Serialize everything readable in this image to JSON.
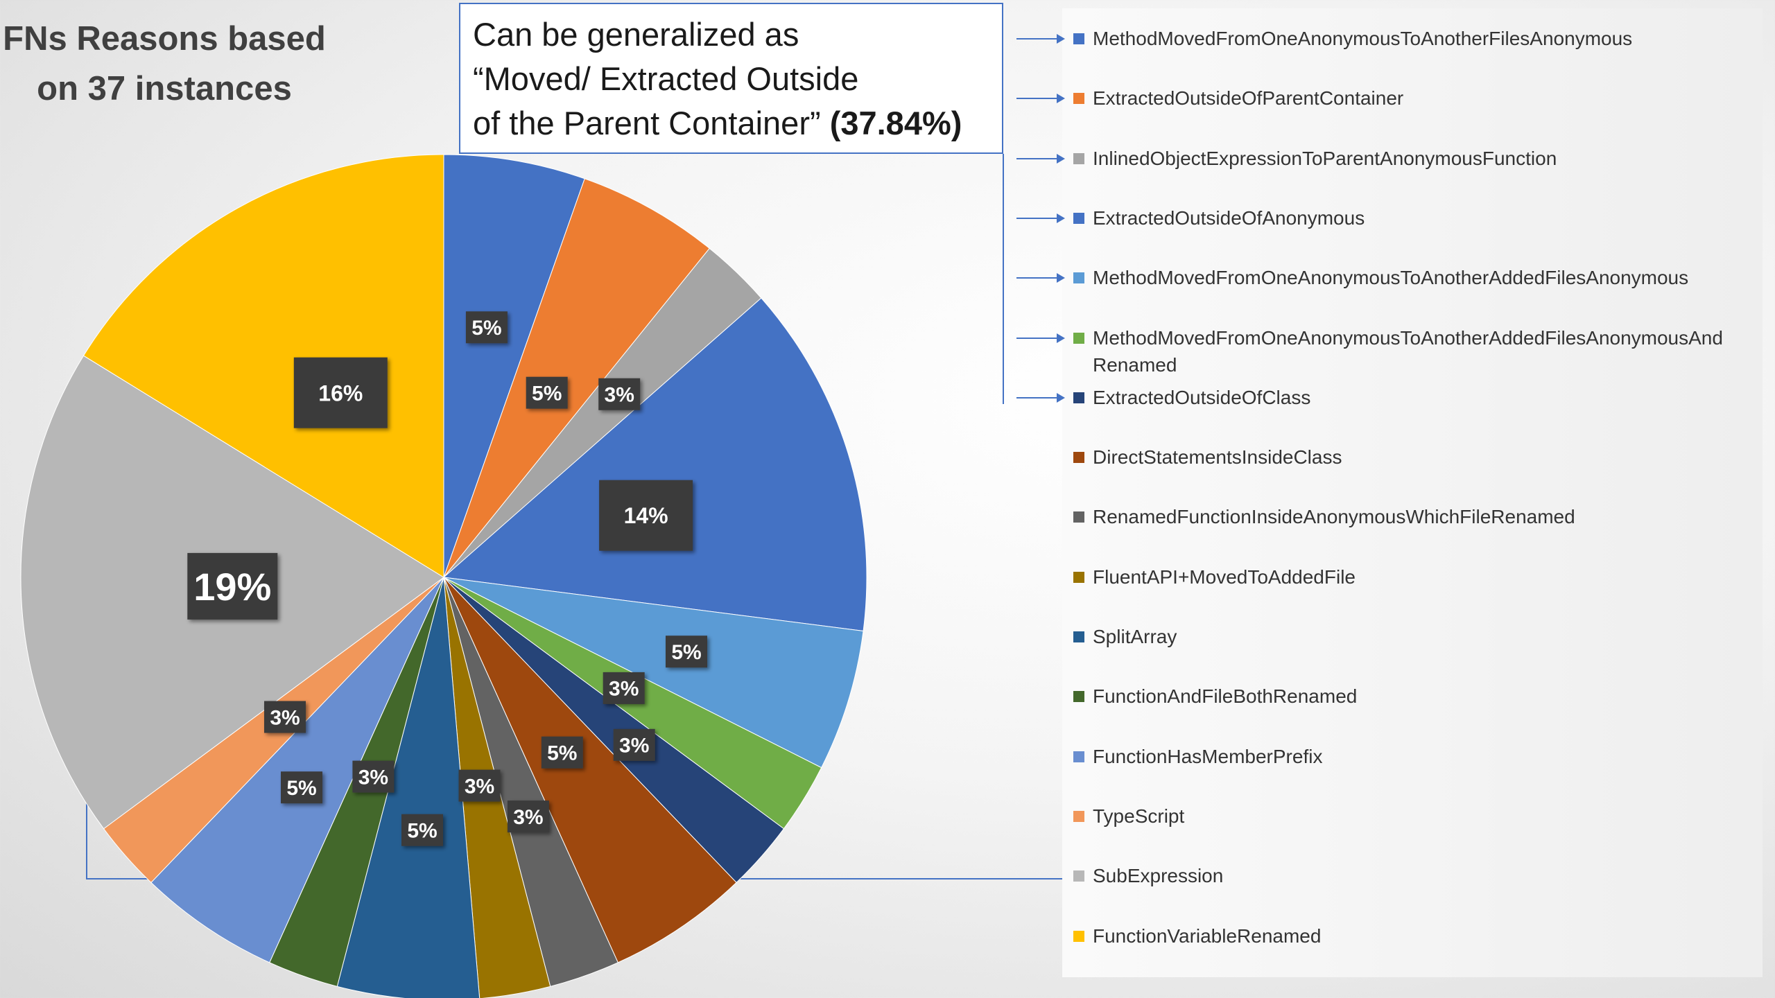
{
  "title": {
    "line1": "FNs Reasons based",
    "line2": "on 37 instances"
  },
  "callout": {
    "line1": "Can be generalized as",
    "line2": "“Moved/ Extracted Outside",
    "line3": "of the Parent Container”",
    "highlight": "(37.84%)"
  },
  "chart_data": {
    "type": "pie",
    "start_angle_deg": 0,
    "direction": "clockwise",
    "legend_position": "right",
    "slices": [
      {
        "label": "MethodMovedFromOneAnonymousToAnotherFilesAnonymous",
        "count": 2,
        "percent_label": "5%",
        "color": "#4472c4"
      },
      {
        "label": "ExtractedOutsideOfParentContainer",
        "count": 2,
        "percent_label": "5%",
        "color": "#ed7d31"
      },
      {
        "label": "InlinedObjectExpressionToParentAnonymousFunction",
        "count": 1,
        "percent_label": "3%",
        "color": "#a5a5a5"
      },
      {
        "label": "ExtractedOutsideOfAnonymous",
        "count": 5,
        "percent_label": "14%",
        "color": "#4472c4"
      },
      {
        "label": "MethodMovedFromOneAnonymousToAnotherAddedFilesAnonymous",
        "count": 2,
        "percent_label": "5%",
        "color": "#5b9bd5"
      },
      {
        "label": "MethodMovedFromOneAnonymousToAnotherAddedFilesAnonymousAnd Renamed",
        "count": 1,
        "percent_label": "3%",
        "color": "#70ad47"
      },
      {
        "label": "ExtractedOutsideOfClass",
        "count": 1,
        "percent_label": "3%",
        "color": "#264478"
      },
      {
        "label": "DirectStatementsInsideClass",
        "count": 2,
        "percent_label": "5%",
        "color": "#9e480e"
      },
      {
        "label": "RenamedFunctionInsideAnonymousWhichFileRenamed",
        "count": 1,
        "percent_label": "3%",
        "color": "#636363"
      },
      {
        "label": "FluentAPI+MovedToAddedFile",
        "count": 1,
        "percent_label": "3%",
        "color": "#997300"
      },
      {
        "label": "SplitArray",
        "count": 2,
        "percent_label": "5%",
        "color": "#255e91"
      },
      {
        "label": "FunctionAndFileBothRenamed",
        "count": 1,
        "percent_label": "3%",
        "color": "#43682b"
      },
      {
        "label": "FunctionHasMemberPrefix",
        "count": 2,
        "percent_label": "5%",
        "color": "#698ed0"
      },
      {
        "label": "TypeScript",
        "count": 1,
        "percent_label": "3%",
        "color": "#f1975a"
      },
      {
        "label": "SubExpression",
        "count": 7,
        "percent_label": "19%",
        "color": "#b7b7b7"
      },
      {
        "label": "FunctionVariableRenamed",
        "count": 6,
        "percent_label": "16%",
        "color": "#ffc000"
      }
    ]
  }
}
